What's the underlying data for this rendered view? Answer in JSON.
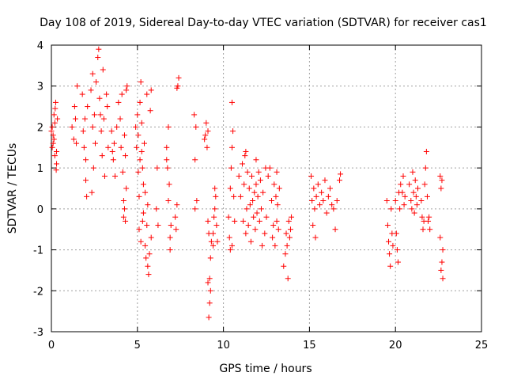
{
  "chart_data": {
    "type": "scatter",
    "title": "Day 108 of 2019, Sidereal Day-to-day VTEC variation (SDTVAR) for receiver cas1",
    "xlabel": "GPS time / hours",
    "ylabel": "SDTVAR / TECUs",
    "xlim": [
      0,
      25
    ],
    "ylim": [
      -3,
      4
    ],
    "xticks": [
      "0",
      "5",
      "10",
      "15",
      "20",
      "25"
    ],
    "yticks": [
      "-3",
      "-2",
      "-1",
      "0",
      "1",
      "2",
      "3",
      "4"
    ],
    "grid": true,
    "marker": "plus",
    "series_color": "#ff0000",
    "series": [
      {
        "name": "SDTVAR",
        "points": [
          [
            0.0,
            1.9
          ],
          [
            0.05,
            2.0
          ],
          [
            0.1,
            1.6
          ],
          [
            0.15,
            2.3
          ],
          [
            0.2,
            1.3
          ],
          [
            0.25,
            2.6
          ],
          [
            0.3,
            1.1
          ],
          [
            0.35,
            2.2
          ],
          [
            0.1,
            1.8
          ],
          [
            0.2,
            2.1
          ],
          [
            0.28,
            0.95
          ],
          [
            0.05,
            1.5
          ],
          [
            0.15,
            1.7
          ],
          [
            0.22,
            2.45
          ],
          [
            0.3,
            1.4
          ],
          [
            1.2,
            2.0
          ],
          [
            1.35,
            2.5
          ],
          [
            1.45,
            1.6
          ],
          [
            1.5,
            3.0
          ],
          [
            1.4,
            2.2
          ],
          [
            1.3,
            1.7
          ],
          [
            1.8,
            2.8
          ],
          [
            1.9,
            1.5
          ],
          [
            1.95,
            2.2
          ],
          [
            2.0,
            0.7
          ],
          [
            2.05,
            0.3
          ],
          [
            2.1,
            2.5
          ],
          [
            2.0,
            1.2
          ],
          [
            1.85,
            1.9
          ],
          [
            2.3,
            2.9
          ],
          [
            2.4,
            3.3
          ],
          [
            2.45,
            1.0
          ],
          [
            2.5,
            2.3
          ],
          [
            2.55,
            1.6
          ],
          [
            2.35,
            0.4
          ],
          [
            2.6,
            3.1
          ],
          [
            2.4,
            2.0
          ],
          [
            2.7,
            3.7
          ],
          [
            2.75,
            3.9
          ],
          [
            2.8,
            2.7
          ],
          [
            2.9,
            1.9
          ],
          [
            2.95,
            1.3
          ],
          [
            3.0,
            3.4
          ],
          [
            3.05,
            2.2
          ],
          [
            3.1,
            0.8
          ],
          [
            3.2,
            2.8
          ],
          [
            3.3,
            1.5
          ],
          [
            3.25,
            2.5
          ],
          [
            2.85,
            2.3
          ],
          [
            3.5,
            1.9
          ],
          [
            3.6,
            1.2
          ],
          [
            3.7,
            0.8
          ],
          [
            3.8,
            2.0
          ],
          [
            3.65,
            1.6
          ],
          [
            3.55,
            1.4
          ],
          [
            3.9,
            2.6
          ],
          [
            4.0,
            2.2
          ],
          [
            4.05,
            1.5
          ],
          [
            4.1,
            2.8
          ],
          [
            4.15,
            0.9
          ],
          [
            4.2,
            0.2
          ],
          [
            4.25,
            0.0
          ],
          [
            4.3,
            -0.3
          ],
          [
            4.35,
            2.9
          ],
          [
            4.4,
            3.0
          ],
          [
            4.3,
            1.3
          ],
          [
            4.2,
            -0.2
          ],
          [
            4.35,
            0.5
          ],
          [
            4.25,
            1.8
          ],
          [
            4.9,
            2.0
          ],
          [
            4.95,
            1.5
          ],
          [
            5.0,
            2.3
          ],
          [
            5.05,
            0.9
          ],
          [
            5.1,
            0.3
          ],
          [
            5.1,
            -0.5
          ],
          [
            5.15,
            1.2
          ],
          [
            5.2,
            -0.8
          ],
          [
            5.2,
            3.1
          ],
          [
            5.25,
            2.1
          ],
          [
            5.3,
            -0.3
          ],
          [
            5.35,
            0.6
          ],
          [
            5.4,
            1.6
          ],
          [
            5.45,
            -0.9
          ],
          [
            5.5,
            -1.2
          ],
          [
            5.55,
            2.8
          ],
          [
            5.6,
            -1.4
          ],
          [
            5.6,
            0.1
          ],
          [
            5.65,
            -1.6
          ],
          [
            5.7,
            -1.1
          ],
          [
            5.75,
            2.4
          ],
          [
            5.8,
            2.9
          ],
          [
            5.8,
            -0.7
          ],
          [
            5.3,
            1.0
          ],
          [
            5.45,
            0.4
          ],
          [
            5.35,
            -0.1
          ],
          [
            5.55,
            -0.4
          ],
          [
            5.15,
            2.6
          ],
          [
            5.05,
            1.8
          ],
          [
            5.25,
            1.4
          ],
          [
            6.1,
            0.0
          ],
          [
            6.2,
            -0.4
          ],
          [
            6.15,
            1.0
          ],
          [
            6.7,
            1.5
          ],
          [
            6.75,
            1.0
          ],
          [
            6.8,
            2.0
          ],
          [
            6.85,
            0.6
          ],
          [
            6.9,
            -1.0
          ],
          [
            6.95,
            -0.4
          ],
          [
            6.8,
            0.2
          ],
          [
            6.7,
            1.2
          ],
          [
            6.9,
            -0.7
          ],
          [
            7.2,
            -0.2
          ],
          [
            7.3,
            0.1
          ],
          [
            7.25,
            -0.5
          ],
          [
            7.35,
            3.0
          ],
          [
            7.4,
            3.2
          ],
          [
            7.3,
            2.95
          ],
          [
            8.3,
            2.3
          ],
          [
            8.4,
            2.0
          ],
          [
            8.35,
            1.2
          ],
          [
            8.45,
            0.2
          ],
          [
            8.35,
            0.0
          ],
          [
            8.9,
            1.7
          ],
          [
            9.0,
            2.1
          ],
          [
            9.1,
            1.9
          ],
          [
            9.05,
            1.5
          ],
          [
            8.95,
            1.8
          ],
          [
            9.1,
            -0.3
          ],
          [
            9.15,
            -0.6
          ],
          [
            9.2,
            -1.7
          ],
          [
            9.25,
            -2.0
          ],
          [
            9.2,
            -2.3
          ],
          [
            9.15,
            -2.65
          ],
          [
            9.3,
            -0.8
          ],
          [
            9.25,
            -1.2
          ],
          [
            9.1,
            -1.8
          ],
          [
            9.4,
            -0.6
          ],
          [
            9.45,
            -0.2
          ],
          [
            9.5,
            0.5
          ],
          [
            9.55,
            0.3
          ],
          [
            9.6,
            -0.4
          ],
          [
            9.65,
            -0.8
          ],
          [
            9.5,
            0.0
          ],
          [
            9.4,
            -0.9
          ],
          [
            10.3,
            -0.2
          ],
          [
            10.35,
            -0.7
          ],
          [
            10.4,
            0.5
          ],
          [
            10.45,
            1.0
          ],
          [
            10.5,
            1.5
          ],
          [
            10.5,
            2.6
          ],
          [
            10.55,
            1.9
          ],
          [
            10.5,
            -0.9
          ],
          [
            10.4,
            -1.0
          ],
          [
            10.6,
            0.3
          ],
          [
            10.65,
            -0.3
          ],
          [
            10.9,
            0.8
          ],
          [
            11.0,
            0.3
          ],
          [
            11.1,
            1.1
          ],
          [
            11.15,
            -0.3
          ],
          [
            11.2,
            0.6
          ],
          [
            11.25,
            1.3
          ],
          [
            11.3,
            -0.6
          ],
          [
            11.35,
            0.0
          ],
          [
            11.4,
            0.9
          ],
          [
            11.45,
            -0.4
          ],
          [
            11.5,
            0.5
          ],
          [
            11.55,
            0.1
          ],
          [
            11.6,
            -0.8
          ],
          [
            11.65,
            0.8
          ],
          [
            11.7,
            0.2
          ],
          [
            11.75,
            -0.2
          ],
          [
            11.8,
            0.4
          ],
          [
            11.85,
            -0.5
          ],
          [
            11.9,
            0.6
          ],
          [
            11.95,
            -0.1
          ],
          [
            12.0,
            0.3
          ],
          [
            12.05,
            0.9
          ],
          [
            12.1,
            -0.3
          ],
          [
            12.15,
            0.7
          ],
          [
            12.2,
            0.0
          ],
          [
            12.3,
            0.4
          ],
          [
            12.4,
            -0.6
          ],
          [
            12.5,
            -0.2
          ],
          [
            12.6,
            0.8
          ],
          [
            12.7,
            1.0
          ],
          [
            12.8,
            0.2
          ],
          [
            12.85,
            -0.7
          ],
          [
            12.9,
            -0.4
          ],
          [
            12.95,
            0.6
          ],
          [
            13.0,
            -0.9
          ],
          [
            13.05,
            0.3
          ],
          [
            13.1,
            -0.3
          ],
          [
            13.15,
            0.1
          ],
          [
            13.2,
            -0.5
          ],
          [
            13.25,
            0.5
          ],
          [
            13.1,
            0.9
          ],
          [
            12.45,
            1.0
          ],
          [
            11.9,
            1.2
          ],
          [
            11.3,
            1.4
          ],
          [
            12.25,
            -0.9
          ],
          [
            13.5,
            -1.4
          ],
          [
            13.6,
            -1.1
          ],
          [
            13.65,
            -0.6
          ],
          [
            13.7,
            -0.9
          ],
          [
            13.75,
            -1.7
          ],
          [
            13.8,
            -0.3
          ],
          [
            13.85,
            -0.7
          ],
          [
            13.9,
            -0.5
          ],
          [
            13.95,
            -0.2
          ],
          [
            15.1,
            0.8
          ],
          [
            15.15,
            0.2
          ],
          [
            15.2,
            -0.4
          ],
          [
            15.25,
            0.5
          ],
          [
            15.3,
            0.0
          ],
          [
            15.35,
            -0.7
          ],
          [
            15.4,
            0.3
          ],
          [
            15.5,
            0.6
          ],
          [
            15.6,
            0.1
          ],
          [
            15.7,
            0.4
          ],
          [
            15.8,
            0.2
          ],
          [
            15.9,
            0.7
          ],
          [
            16.0,
            -0.1
          ],
          [
            16.1,
            0.3
          ],
          [
            16.2,
            0.5
          ],
          [
            16.3,
            0.1
          ],
          [
            16.4,
            0.0
          ],
          [
            16.5,
            -0.5
          ],
          [
            16.6,
            0.2
          ],
          [
            16.8,
            0.85
          ],
          [
            16.75,
            0.7
          ],
          [
            19.5,
            0.2
          ],
          [
            19.55,
            -0.4
          ],
          [
            19.6,
            -0.8
          ],
          [
            19.65,
            -1.1
          ],
          [
            19.7,
            -1.4
          ],
          [
            19.75,
            0.0
          ],
          [
            19.8,
            -0.6
          ],
          [
            19.85,
            -0.9
          ],
          [
            20.0,
            0.2
          ],
          [
            20.05,
            -0.6
          ],
          [
            20.1,
            -1.0
          ],
          [
            20.15,
            -1.3
          ],
          [
            20.2,
            0.4
          ],
          [
            20.25,
            0.0
          ],
          [
            20.3,
            0.6
          ],
          [
            20.4,
            0.4
          ],
          [
            20.45,
            0.8
          ],
          [
            20.5,
            0.1
          ],
          [
            20.55,
            0.3
          ],
          [
            20.8,
            0.6
          ],
          [
            20.9,
            0.2
          ],
          [
            20.95,
            0.0
          ],
          [
            21.0,
            0.9
          ],
          [
            21.05,
            0.4
          ],
          [
            21.1,
            -0.1
          ],
          [
            21.15,
            0.7
          ],
          [
            21.2,
            0.3
          ],
          [
            21.25,
            0.1
          ],
          [
            21.3,
            0.5
          ],
          [
            21.5,
            0.2
          ],
          [
            21.55,
            -0.2
          ],
          [
            21.6,
            -0.5
          ],
          [
            21.65,
            -0.3
          ],
          [
            21.7,
            0.6
          ],
          [
            21.75,
            1.0
          ],
          [
            21.8,
            1.4
          ],
          [
            21.85,
            0.3
          ],
          [
            21.9,
            -0.3
          ],
          [
            22.0,
            -0.5
          ],
          [
            21.95,
            -0.2
          ],
          [
            22.6,
            0.8
          ],
          [
            22.65,
            0.5
          ],
          [
            22.7,
            0.7
          ],
          [
            22.75,
            -1.0
          ],
          [
            22.7,
            -1.3
          ],
          [
            22.75,
            -1.7
          ],
          [
            22.65,
            -1.5
          ],
          [
            22.6,
            -0.7
          ]
        ]
      }
    ]
  }
}
